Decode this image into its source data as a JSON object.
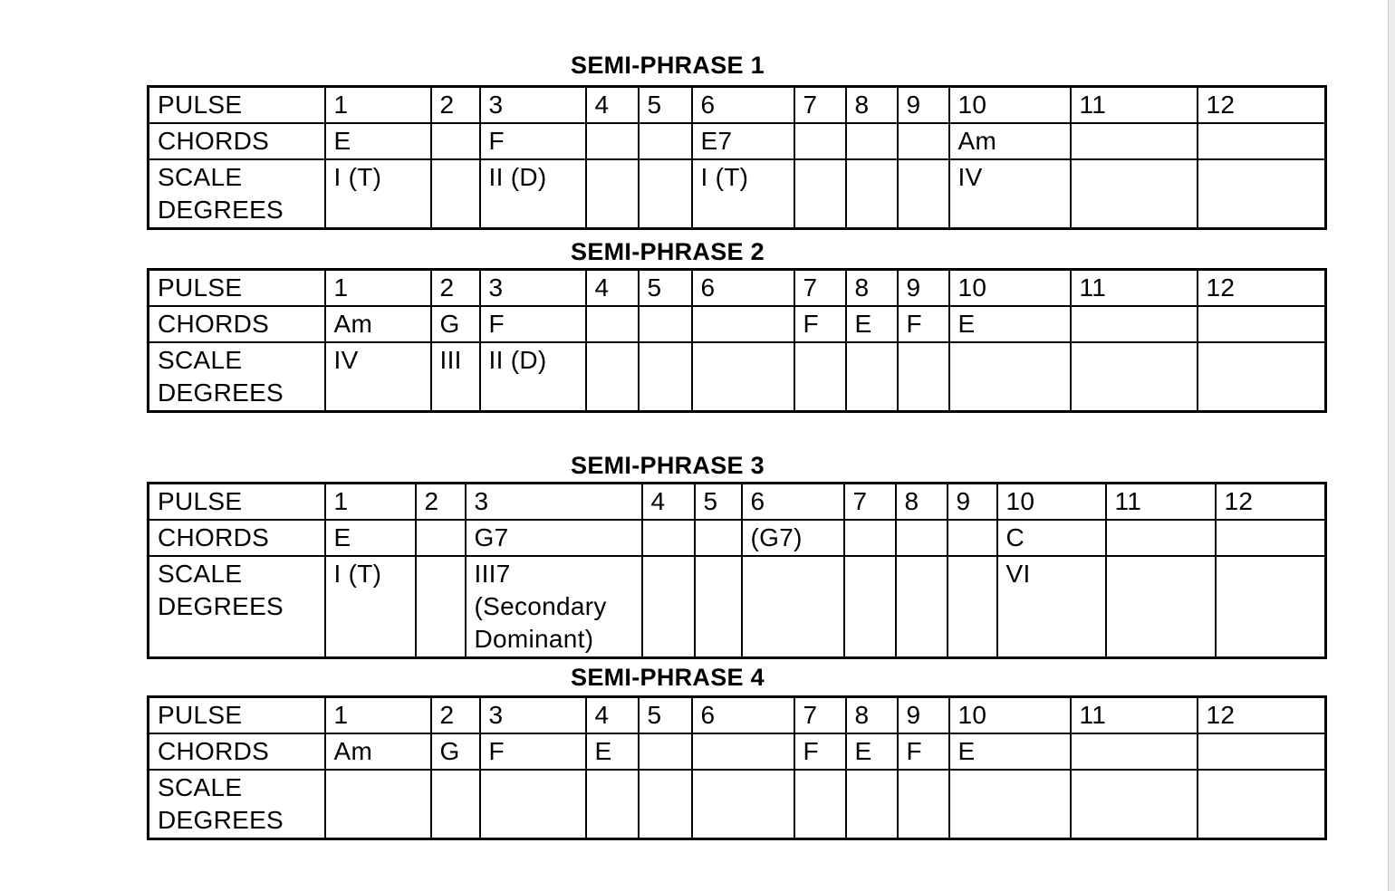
{
  "tables": [
    {
      "title": "SEMI-PHRASE 1",
      "row_labels": [
        "PULSE",
        "CHORDS",
        "SCALE\nDEGREES"
      ],
      "pulse": [
        "1",
        "2",
        "3",
        "4",
        "5",
        "6",
        "7",
        "8",
        "9",
        "10",
        "11",
        "12"
      ],
      "chords": [
        "E",
        "",
        "F",
        "",
        "",
        "E7",
        "",
        "",
        "",
        "Am",
        "",
        ""
      ],
      "scale_degrees": [
        "I (T)",
        "",
        "II (D)",
        "",
        "",
        "I (T)",
        "",
        "",
        "",
        "IV",
        "",
        ""
      ]
    },
    {
      "title": "SEMI-PHRASE 2",
      "row_labels": [
        "PULSE",
        "CHORDS",
        "SCALE\nDEGREES"
      ],
      "pulse": [
        "1",
        "2",
        "3",
        "4",
        "5",
        "6",
        "7",
        "8",
        "9",
        "10",
        "11",
        "12"
      ],
      "chords": [
        "Am",
        "G",
        "F",
        "",
        "",
        "",
        "F",
        "E",
        "F",
        "E",
        "",
        ""
      ],
      "scale_degrees": [
        "IV",
        "III",
        "II (D)",
        "",
        "",
        "",
        "",
        "",
        "",
        "",
        "",
        ""
      ]
    },
    {
      "title": "SEMI-PHRASE 3",
      "row_labels": [
        "PULSE",
        "CHORDS",
        "SCALE\nDEGREES"
      ],
      "pulse": [
        "1",
        "2",
        "3",
        "4",
        "5",
        "6",
        "7",
        "8",
        "9",
        "10",
        "11",
        "12"
      ],
      "chords": [
        "E",
        "",
        "G7",
        "",
        "",
        "(G7)",
        "",
        "",
        "",
        "C",
        "",
        ""
      ],
      "scale_degrees": [
        "I (T)",
        "",
        "III7\n(Secondary\nDominant)",
        "",
        "",
        "",
        "",
        "",
        "",
        "VI",
        "",
        ""
      ]
    },
    {
      "title": "SEMI-PHRASE 4",
      "row_labels": [
        "PULSE",
        "CHORDS",
        "SCALE\nDEGREES"
      ],
      "pulse": [
        "1",
        "2",
        "3",
        "4",
        "5",
        "6",
        "7",
        "8",
        "9",
        "10",
        "11",
        "12"
      ],
      "chords": [
        "Am",
        "G",
        "F",
        "E",
        "",
        "",
        "F",
        "E",
        "F",
        "E",
        "",
        ""
      ],
      "scale_degrees": [
        "",
        "",
        "",
        "",
        "",
        "",
        "",
        "",
        "",
        "",
        "",
        ""
      ]
    }
  ]
}
